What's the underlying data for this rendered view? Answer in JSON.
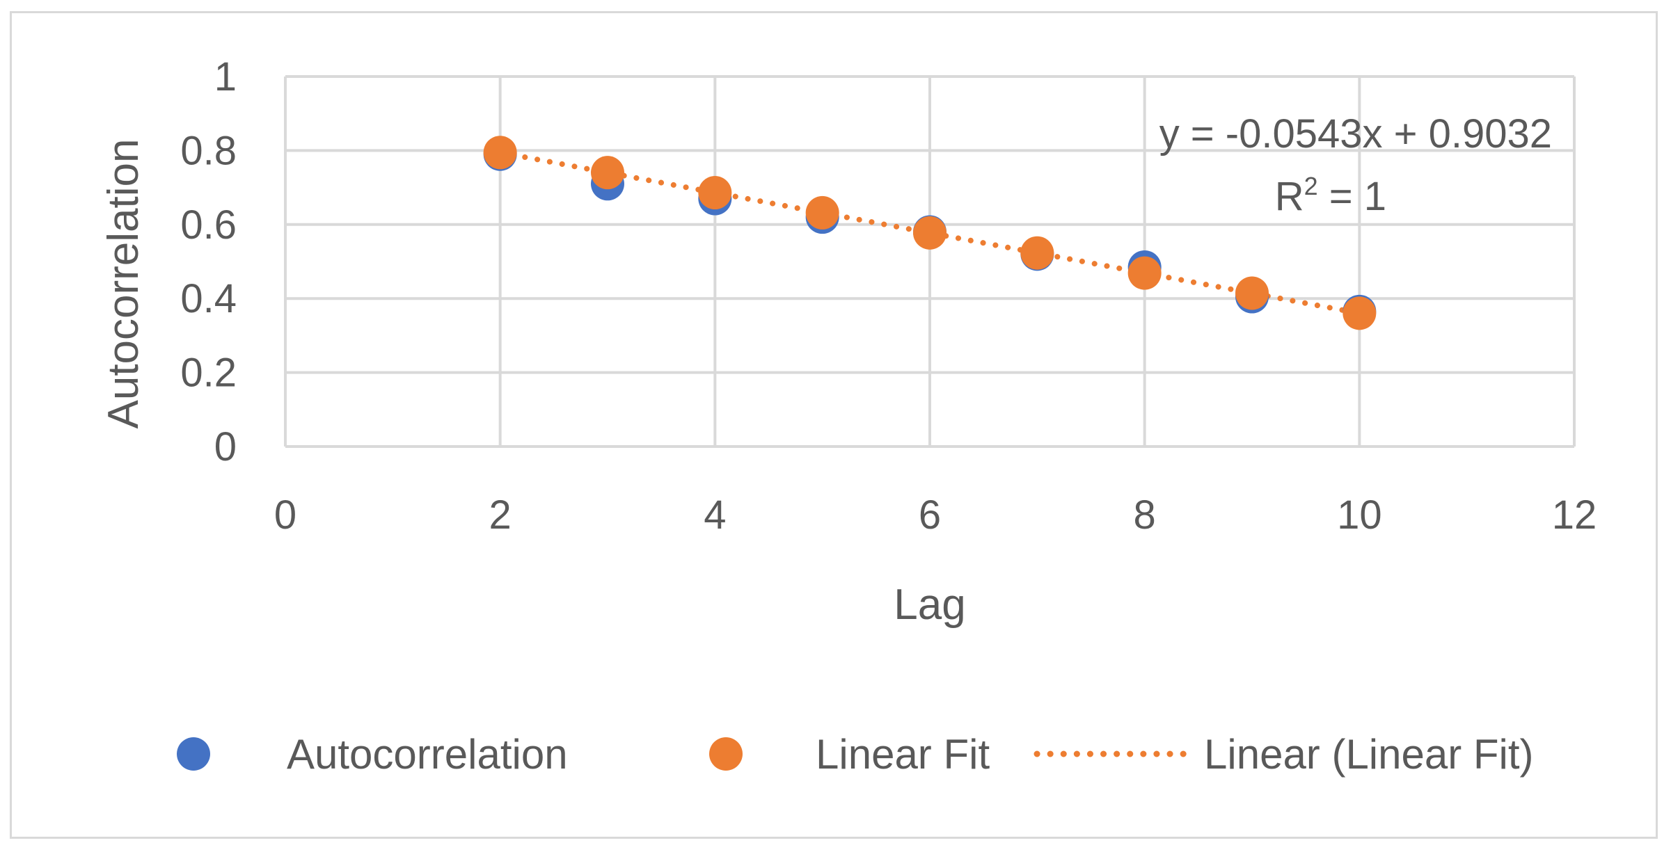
{
  "chart_data": {
    "type": "scatter",
    "xlabel": "Lag",
    "ylabel": "Autocorrelation",
    "xlim": [
      0,
      12
    ],
    "ylim": [
      0,
      1
    ],
    "x_ticks": [
      "0",
      "2",
      "4",
      "6",
      "8",
      "10",
      "12"
    ],
    "y_ticks": [
      "0",
      "0.2",
      "0.4",
      "0.6",
      "0.8",
      "1"
    ],
    "grid": true,
    "legend_position": "bottom",
    "series": [
      {
        "name": "Autocorrelation",
        "color": "#4472c4",
        "x": [
          2,
          3,
          4,
          5,
          6,
          7,
          8,
          9,
          10
        ],
        "y": [
          0.79,
          0.71,
          0.67,
          0.62,
          0.58,
          0.52,
          0.485,
          0.405,
          0.365
        ]
      },
      {
        "name": "Linear Fit",
        "color": "#ed7d31",
        "x": [
          2,
          3,
          4,
          5,
          6,
          7,
          8,
          9,
          10
        ],
        "y": [
          0.7946,
          0.7403,
          0.686,
          0.6317,
          0.5774,
          0.5231,
          0.4688,
          0.4145,
          0.3602
        ]
      }
    ],
    "trendline": {
      "name": "Linear (Linear Fit)",
      "color": "#ed7d31",
      "slope": -0.0543,
      "intercept": 0.9032,
      "x_range": [
        2,
        10
      ],
      "equation_line1": "y = -0.0543x + 0.9032",
      "r2_prefix": "R",
      "r2_suffix": " = 1"
    }
  }
}
